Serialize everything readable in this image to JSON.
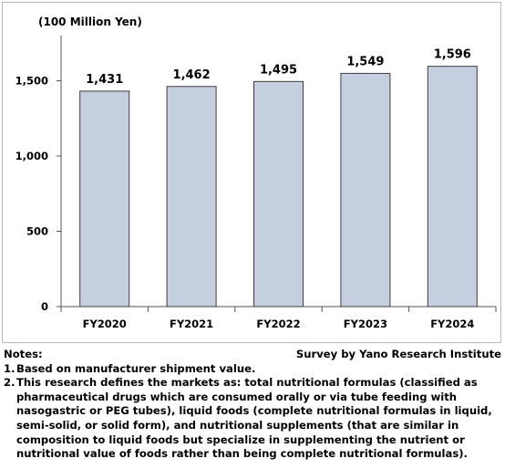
{
  "chart_data": {
    "type": "bar",
    "unit_label": "(100 Million Yen)",
    "categories": [
      "FY2020",
      "FY2021",
      "FY2022",
      "FY2023",
      "FY2024"
    ],
    "values": [
      1431,
      1462,
      1495,
      1549,
      1596
    ],
    "value_labels": [
      "1,431",
      "1,462",
      "1,495",
      "1,549",
      "1,596"
    ],
    "yticks": [
      0,
      500,
      1000,
      1500
    ],
    "ytick_labels": [
      "0",
      "500",
      "1,000",
      "1,500"
    ],
    "ylim": [
      0,
      1800
    ],
    "grid": false,
    "bar_color": "#c5cfdf",
    "bar_border": "#3c3c3c"
  },
  "notes": {
    "heading": "Notes:",
    "source": "Survey by Yano Research Institute",
    "items": [
      {
        "num": "1.",
        "text": "Based on manufacturer shipment value."
      },
      {
        "num": "2.",
        "text": "This research defines the markets as: total nutritional formulas (classified as pharmaceutical drugs which are consumed orally or via tube feeding with nasogastric or PEG tubes), liquid foods (complete nutritional formulas in liquid, semi-solid, or solid form), and nutritional supplements (that are similar in composition to liquid foods but specialize in supplementing the nutrient or nutritional value of foods rather than being complete nutritional formulas)."
      }
    ]
  }
}
